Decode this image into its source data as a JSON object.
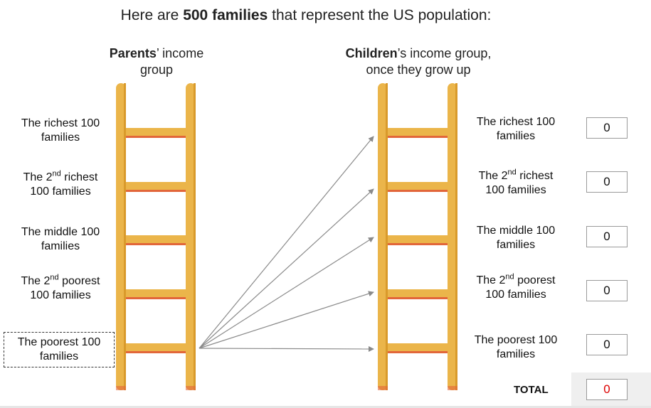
{
  "header": {
    "title_prefix": "Here are ",
    "title_bold": "500 families",
    "title_suffix": " that represent the US population:"
  },
  "parents": {
    "heading_bold": "Parents",
    "heading_rest_1": "’ income",
    "heading_rest_2": "group",
    "rows": [
      {
        "l1": "The richest 100",
        "l2": "families"
      },
      {
        "pre": "The 2",
        "sup": "nd",
        "post": " richest",
        "l2": "100 families"
      },
      {
        "l1": "The middle 100",
        "l2": "families"
      },
      {
        "pre": "The 2",
        "sup": "nd",
        "post": " poorest",
        "l2": "100 families"
      },
      {
        "l1": "The poorest 100",
        "l2": "families"
      }
    ],
    "selected_row": "The poorest 100 families"
  },
  "children": {
    "heading_bold": "Children",
    "heading_rest_1": "’s income group,",
    "heading_rest_2": "once they grow up",
    "rows": [
      {
        "l1": "The richest 100",
        "l2": "families",
        "count": "0"
      },
      {
        "pre": "The 2",
        "sup": "nd",
        "post": " richest",
        "l2": "100 families",
        "count": "0"
      },
      {
        "l1": "The middle 100",
        "l2": "families",
        "count": "0"
      },
      {
        "pre": "The 2",
        "sup": "nd",
        "post": " poorest",
        "l2": "100 families",
        "count": "0"
      },
      {
        "l1": "The poorest 100",
        "l2": "families",
        "count": "0"
      }
    ]
  },
  "total": {
    "label": "TOTAL",
    "value": "0",
    "value_color": "#dd0000"
  },
  "colors": {
    "ladder": "#ebb54a",
    "ladder_shadow": "#d99a2b",
    "rung_edge": "#e2663a",
    "arrow": "#8a8a8a"
  }
}
